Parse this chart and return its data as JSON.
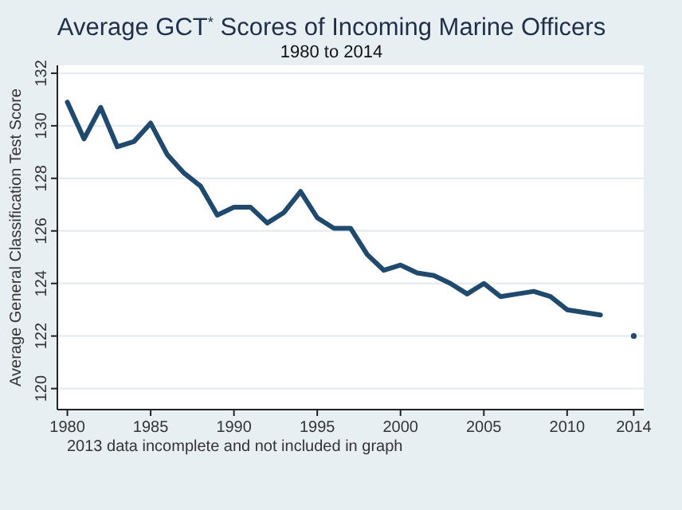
{
  "chart_data": {
    "type": "line",
    "title": "Average GCT$^{*}$ Scores of Incoming Marine Officers",
    "subtitle": "1980 to 2014",
    "ylabel": "Average General Classification Test Score",
    "x": [
      1980,
      1981,
      1982,
      1983,
      1984,
      1985,
      1986,
      1987,
      1988,
      1989,
      1990,
      1991,
      1992,
      1993,
      1994,
      1995,
      1996,
      1997,
      1998,
      1999,
      2000,
      2001,
      2002,
      2003,
      2004,
      2005,
      2006,
      2007,
      2008,
      2009,
      2010,
      2011,
      2012,
      2013,
      2014
    ],
    "series": [
      {
        "color": "#1f4a6e",
        "values": [
          130.9,
          129.5,
          130.7,
          129.2,
          129.4,
          130.1,
          128.9,
          128.2,
          127.7,
          126.6,
          126.9,
          126.9,
          126.3,
          126.7,
          127.5,
          126.5,
          126.1,
          126.1,
          125.1,
          124.5,
          124.7,
          124.4,
          124.3,
          124.0,
          123.6,
          124.0,
          123.5,
          123.6,
          123.7,
          123.5,
          123.0,
          122.9,
          122.8,
          null,
          122.0
        ]
      }
    ],
    "xlim": [
      1979.4,
      2014.6
    ],
    "xticks": [
      1980,
      1985,
      1990,
      1995,
      2000,
      2005,
      2010,
      2014
    ],
    "ylim": [
      119.2,
      132.3
    ],
    "yticks": [
      120,
      122,
      124,
      126,
      128,
      130,
      132
    ],
    "grid": "y",
    "line_style": "solid",
    "annotations": [
      "2013 data incomplete and not included in graph"
    ]
  }
}
